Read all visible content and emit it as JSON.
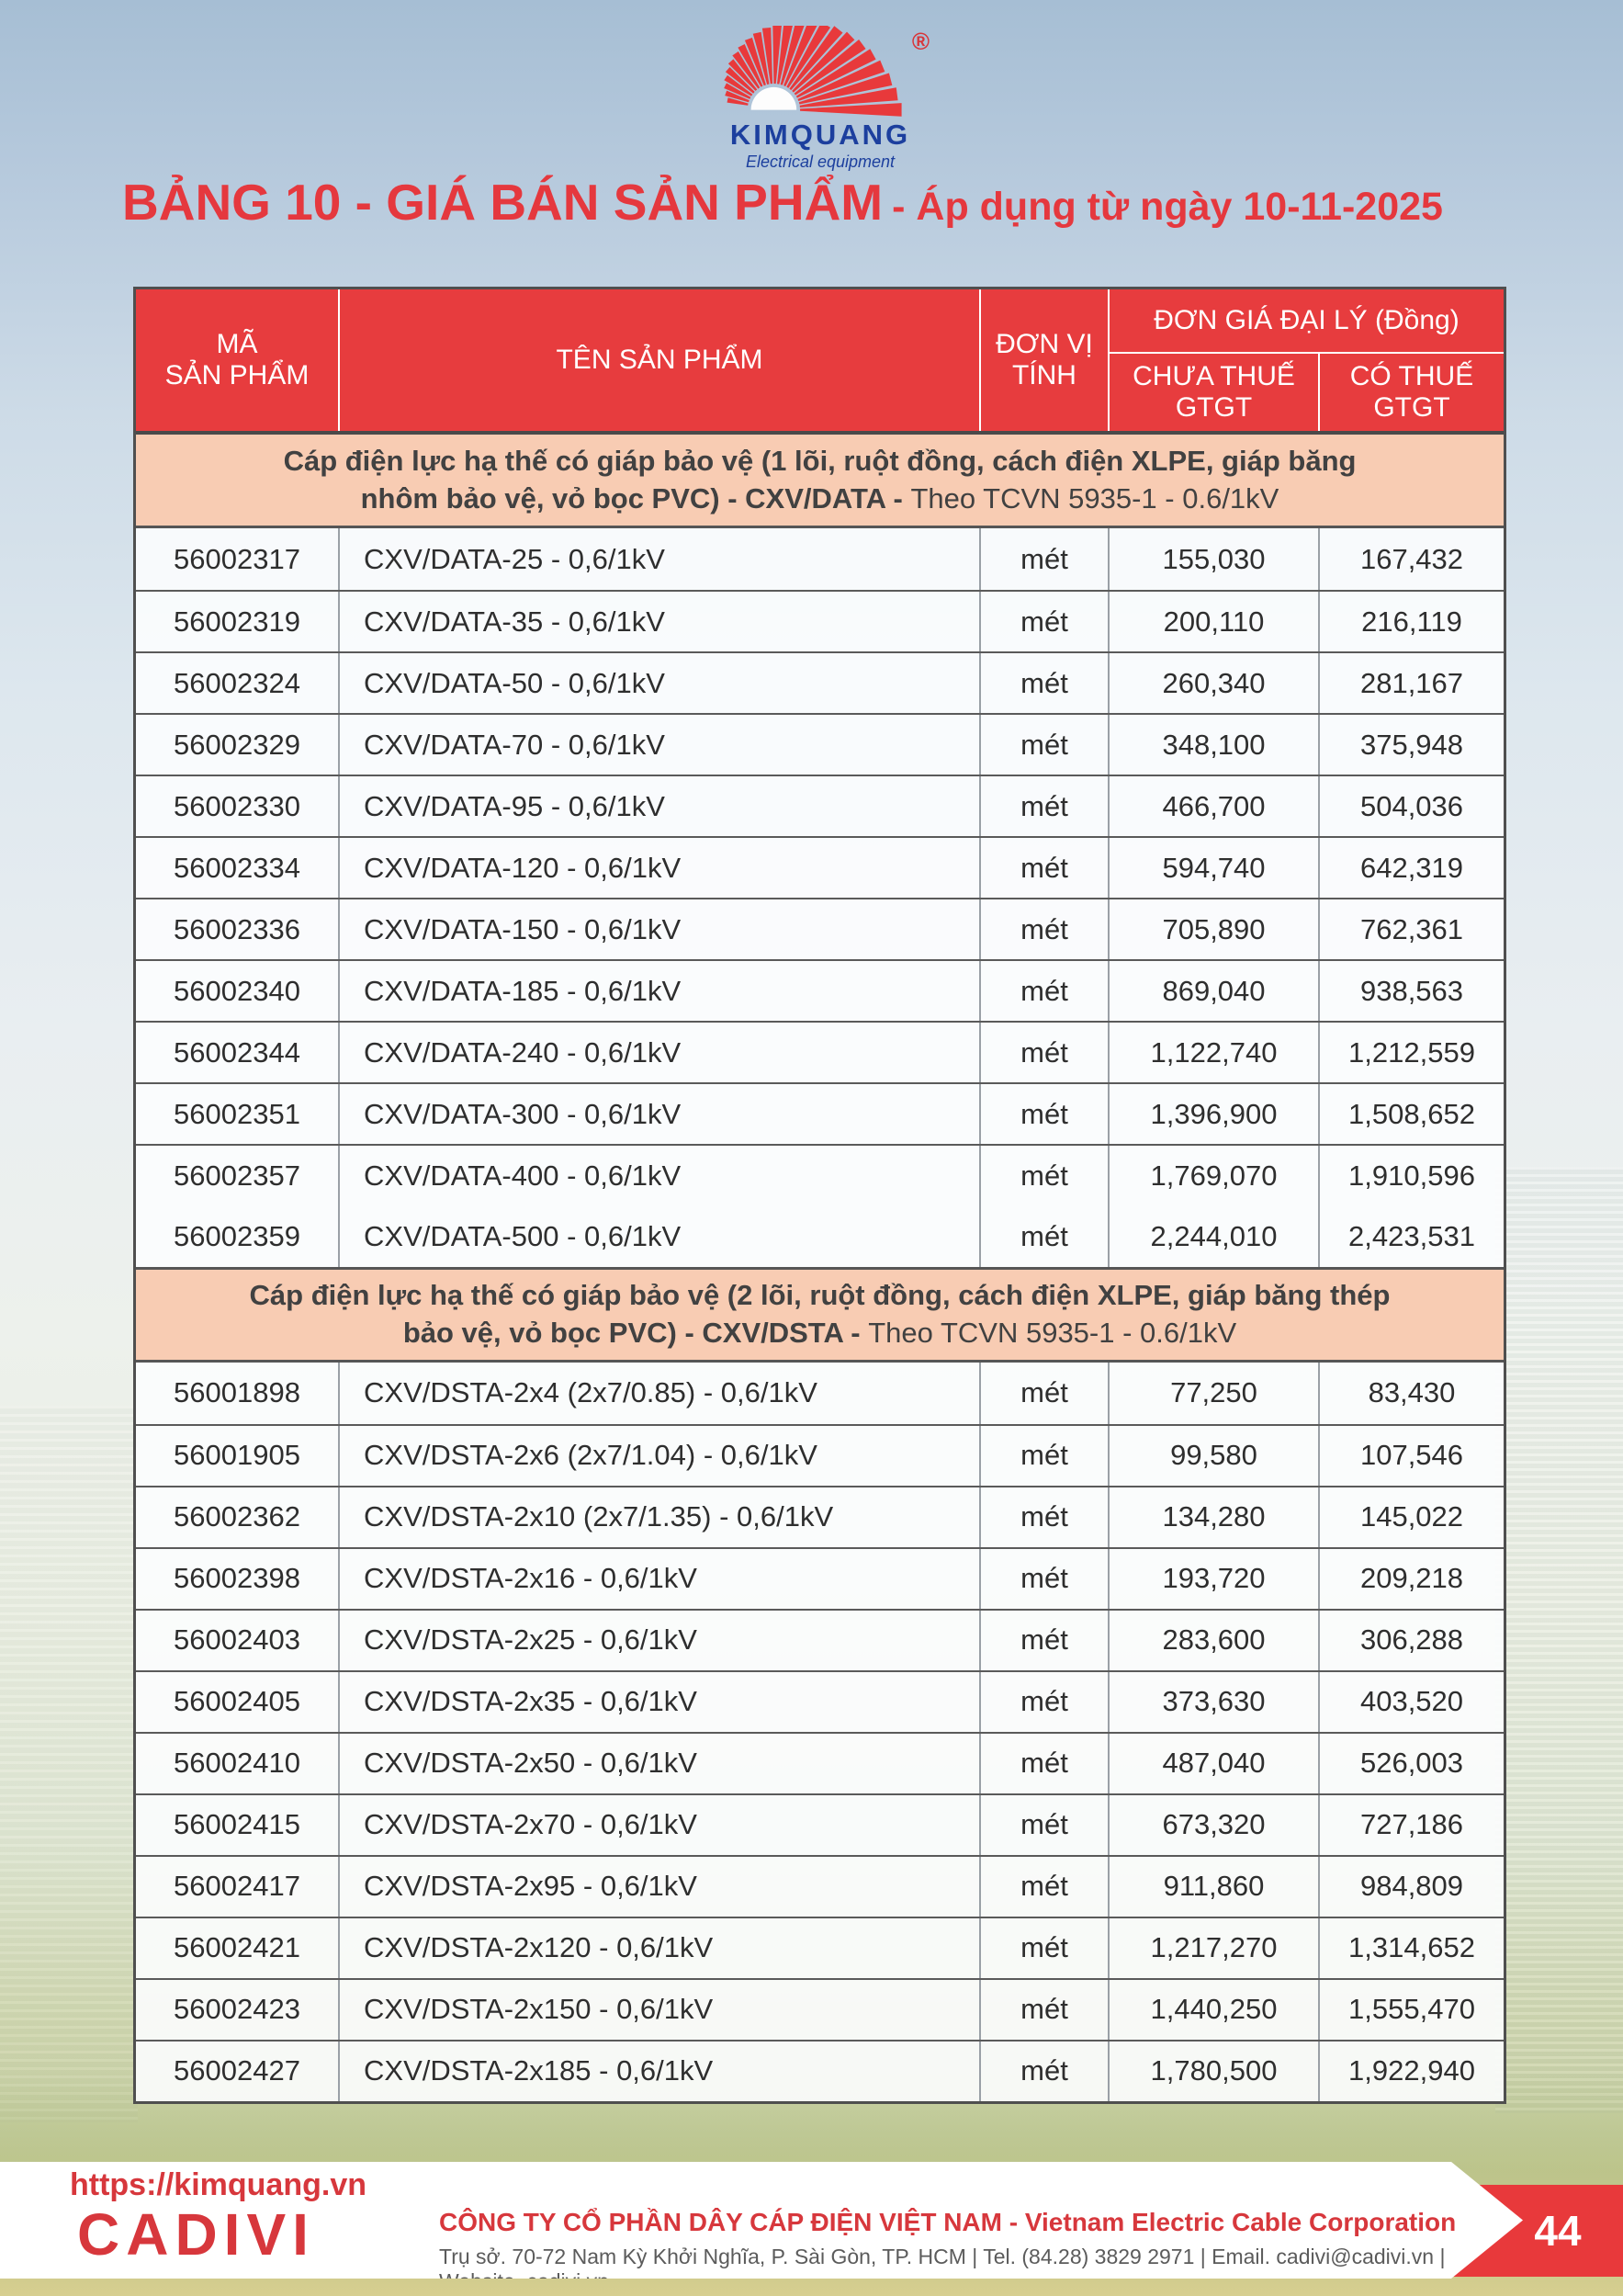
{
  "colors": {
    "accent_red": "#e73c3e",
    "title_red": "#e5383e",
    "band_peach": "#f8ccb3",
    "brand_blue": "#1c3f9e",
    "footer_red": "#d7373c"
  },
  "logo": {
    "brand": "KIMQUANG",
    "tagline": "Electrical equipment",
    "registered": "®"
  },
  "title": {
    "main": "BẢNG 10 - GIÁ BÁN SẢN PHẨM",
    "suffix": "- Áp dụng từ ngày 10-11-2025"
  },
  "table": {
    "headers": {
      "code": "MÃ\nSẢN PHẨM",
      "name": "TÊN SẢN PHẨM",
      "unit": "ĐƠN VỊ\nTÍNH",
      "price_group": "ĐƠN GIÁ ĐẠI LÝ (Đồng)",
      "price_ex": "CHƯA THUẾ\nGTGT",
      "price_inc": "CÓ THUẾ\nGTGT"
    },
    "sections": [
      {
        "heading_bold": "Cáp điện lực hạ thế có giáp bảo vệ (1 lõi, ruột đồng, cách điện XLPE, giáp băng nhôm bảo vệ, vỏ bọc PVC) - CXV/DATA -",
        "heading_normal": "Theo TCVN 5935-1 - 0.6/1kV",
        "rows": [
          {
            "code": "56002317",
            "name": "CXV/DATA-25 - 0,6/1kV",
            "unit": "mét",
            "price_ex": "155,030",
            "price_inc": "167,432"
          },
          {
            "code": "56002319",
            "name": "CXV/DATA-35 - 0,6/1kV",
            "unit": "mét",
            "price_ex": "200,110",
            "price_inc": "216,119"
          },
          {
            "code": "56002324",
            "name": "CXV/DATA-50 - 0,6/1kV",
            "unit": "mét",
            "price_ex": "260,340",
            "price_inc": "281,167"
          },
          {
            "code": "56002329",
            "name": "CXV/DATA-70 - 0,6/1kV",
            "unit": "mét",
            "price_ex": "348,100",
            "price_inc": "375,948"
          },
          {
            "code": "56002330",
            "name": "CXV/DATA-95 - 0,6/1kV",
            "unit": "mét",
            "price_ex": "466,700",
            "price_inc": "504,036"
          },
          {
            "code": "56002334",
            "name": "CXV/DATA-120 - 0,6/1kV",
            "unit": "mét",
            "price_ex": "594,740",
            "price_inc": "642,319"
          },
          {
            "code": "56002336",
            "name": "CXV/DATA-150 - 0,6/1kV",
            "unit": "mét",
            "price_ex": "705,890",
            "price_inc": "762,361"
          },
          {
            "code": "56002340",
            "name": "CXV/DATA-185 - 0,6/1kV",
            "unit": "mét",
            "price_ex": "869,040",
            "price_inc": "938,563"
          },
          {
            "code": "56002344",
            "name": "CXV/DATA-240 - 0,6/1kV",
            "unit": "mét",
            "price_ex": "1,122,740",
            "price_inc": "1,212,559"
          },
          {
            "code": "56002351",
            "name": "CXV/DATA-300 - 0,6/1kV",
            "unit": "mét",
            "price_ex": "1,396,900",
            "price_inc": "1,508,652"
          },
          {
            "code": "56002357",
            "name": "CXV/DATA-400 - 0,6/1kV",
            "unit": "mét",
            "price_ex": "1,769,070",
            "price_inc": "1,910,596"
          },
          {
            "code": "56002359",
            "name": "CXV/DATA-500 - 0,6/1kV",
            "unit": "mét",
            "price_ex": "2,244,010",
            "price_inc": "2,423,531",
            "merged": true
          }
        ]
      },
      {
        "heading_bold": "Cáp điện lực hạ thế có giáp bảo vệ (2 lõi, ruột đồng, cách điện XLPE, giáp băng thép bảo vệ, vỏ bọc PVC) - CXV/DSTA -",
        "heading_normal": "Theo TCVN 5935-1 - 0.6/1kV",
        "rows": [
          {
            "code": "56001898",
            "name": "CXV/DSTA-2x4 (2x7/0.85) - 0,6/1kV",
            "unit": "mét",
            "price_ex": "77,250",
            "price_inc": "83,430"
          },
          {
            "code": "56001905",
            "name": "CXV/DSTA-2x6 (2x7/1.04) - 0,6/1kV",
            "unit": "mét",
            "price_ex": "99,580",
            "price_inc": "107,546"
          },
          {
            "code": "56002362",
            "name": "CXV/DSTA-2x10 (2x7/1.35) - 0,6/1kV",
            "unit": "mét",
            "price_ex": "134,280",
            "price_inc": "145,022"
          },
          {
            "code": "56002398",
            "name": "CXV/DSTA-2x16 - 0,6/1kV",
            "unit": "mét",
            "price_ex": "193,720",
            "price_inc": "209,218"
          },
          {
            "code": "56002403",
            "name": "CXV/DSTA-2x25 - 0,6/1kV",
            "unit": "mét",
            "price_ex": "283,600",
            "price_inc": "306,288"
          },
          {
            "code": "56002405",
            "name": "CXV/DSTA-2x35 - 0,6/1kV",
            "unit": "mét",
            "price_ex": "373,630",
            "price_inc": "403,520"
          },
          {
            "code": "56002410",
            "name": "CXV/DSTA-2x50 - 0,6/1kV",
            "unit": "mét",
            "price_ex": "487,040",
            "price_inc": "526,003"
          },
          {
            "code": "56002415",
            "name": "CXV/DSTA-2x70 - 0,6/1kV",
            "unit": "mét",
            "price_ex": "673,320",
            "price_inc": "727,186"
          },
          {
            "code": "56002417",
            "name": "CXV/DSTA-2x95 - 0,6/1kV",
            "unit": "mét",
            "price_ex": "911,860",
            "price_inc": "984,809"
          },
          {
            "code": "56002421",
            "name": "CXV/DSTA-2x120 - 0,6/1kV",
            "unit": "mét",
            "price_ex": "1,217,270",
            "price_inc": "1,314,652"
          },
          {
            "code": "56002423",
            "name": "CXV/DSTA-2x150 - 0,6/1kV",
            "unit": "mét",
            "price_ex": "1,440,250",
            "price_inc": "1,555,470"
          },
          {
            "code": "56002427",
            "name": "CXV/DSTA-2x185 - 0,6/1kV",
            "unit": "mét",
            "price_ex": "1,780,500",
            "price_inc": "1,922,940"
          }
        ]
      }
    ]
  },
  "footer": {
    "url": "https://kimquang.vn",
    "brand": "CADIVI",
    "company": "CÔNG TY CỔ PHẦN DÂY CÁP ĐIỆN VIỆT NAM - Vietnam Electric Cable Corporation",
    "address": "Trụ sở. 70-72 Nam Kỳ Khởi Nghĩa, P. Sài Gòn, TP. HCM | Tel. (84.28) 3829 2971 | Email. cadivi@cadivi.vn | Website. cadivi.vn",
    "page_number": "44"
  }
}
